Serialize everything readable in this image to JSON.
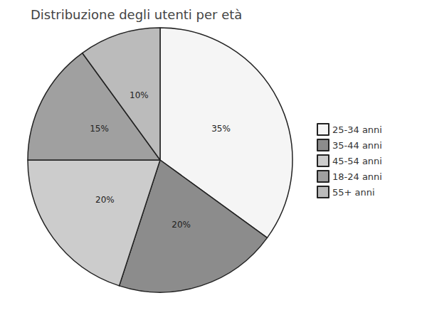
{
  "chart_data": {
    "type": "pie",
    "title": "Distribuzione degli utenti per età",
    "categories": [
      "25-34 anni",
      "35-44 anni",
      "45-54 anni",
      "18-24 anni",
      "55+ anni"
    ],
    "values": [
      35,
      20,
      20,
      15,
      10
    ],
    "value_labels": [
      "35%",
      "20%",
      "20%",
      "15%",
      "10%"
    ],
    "colors": [
      "#f5f5f5",
      "#8c8c8c",
      "#cccccc",
      "#a0a0a0",
      "#bbbbbb"
    ],
    "data_labels": true,
    "legend": "right"
  }
}
